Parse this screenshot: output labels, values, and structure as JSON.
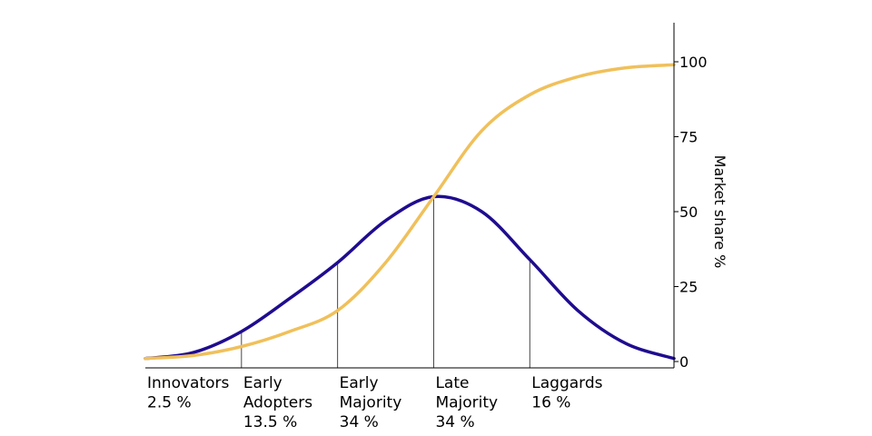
{
  "chart_data": {
    "type": "line",
    "title": "",
    "xlabel": "",
    "ylabel": "Market share %",
    "y_axis_side": "right",
    "ylim": [
      0,
      100
    ],
    "yticks": [
      0,
      25,
      50,
      75,
      100
    ],
    "x_range": [
      -3,
      2.5
    ],
    "grid": false,
    "legend": "none",
    "series": [
      {
        "color": "#1f0c8f",
        "shape": "bell (adoption curve)",
        "x": [
          -3,
          -2.5,
          -2,
          -1.5,
          -1,
          -0.5,
          0,
          0.5,
          1,
          1.5,
          2,
          2.5
        ],
        "values": [
          1,
          3,
          10,
          21,
          33,
          47,
          55,
          50,
          34,
          17,
          6,
          1
        ]
      },
      {
        "color": "#f0c05a",
        "shape": "S-curve (cumulative market share)",
        "x": [
          -3,
          -2.5,
          -2,
          -1.5,
          -1,
          -0.5,
          0,
          0.5,
          1,
          1.5,
          2,
          2.5
        ],
        "values": [
          1,
          2,
          5,
          10,
          17,
          33,
          55,
          77,
          89,
          95,
          98,
          99
        ]
      }
    ],
    "dividers": [
      -2,
      -1,
      0,
      1
    ],
    "segments": [
      {
        "lines": [
          "Innovators",
          "2.5 %"
        ],
        "start": -3
      },
      {
        "lines": [
          "Early",
          "Adopters",
          "13.5 %"
        ],
        "start": -2
      },
      {
        "lines": [
          "Early",
          "Majority",
          "34 %"
        ],
        "start": -1
      },
      {
        "lines": [
          "Late",
          "Majority",
          "34 %"
        ],
        "start": 0
      },
      {
        "lines": [
          "Laggards",
          "16 %"
        ],
        "start": 1
      }
    ]
  }
}
